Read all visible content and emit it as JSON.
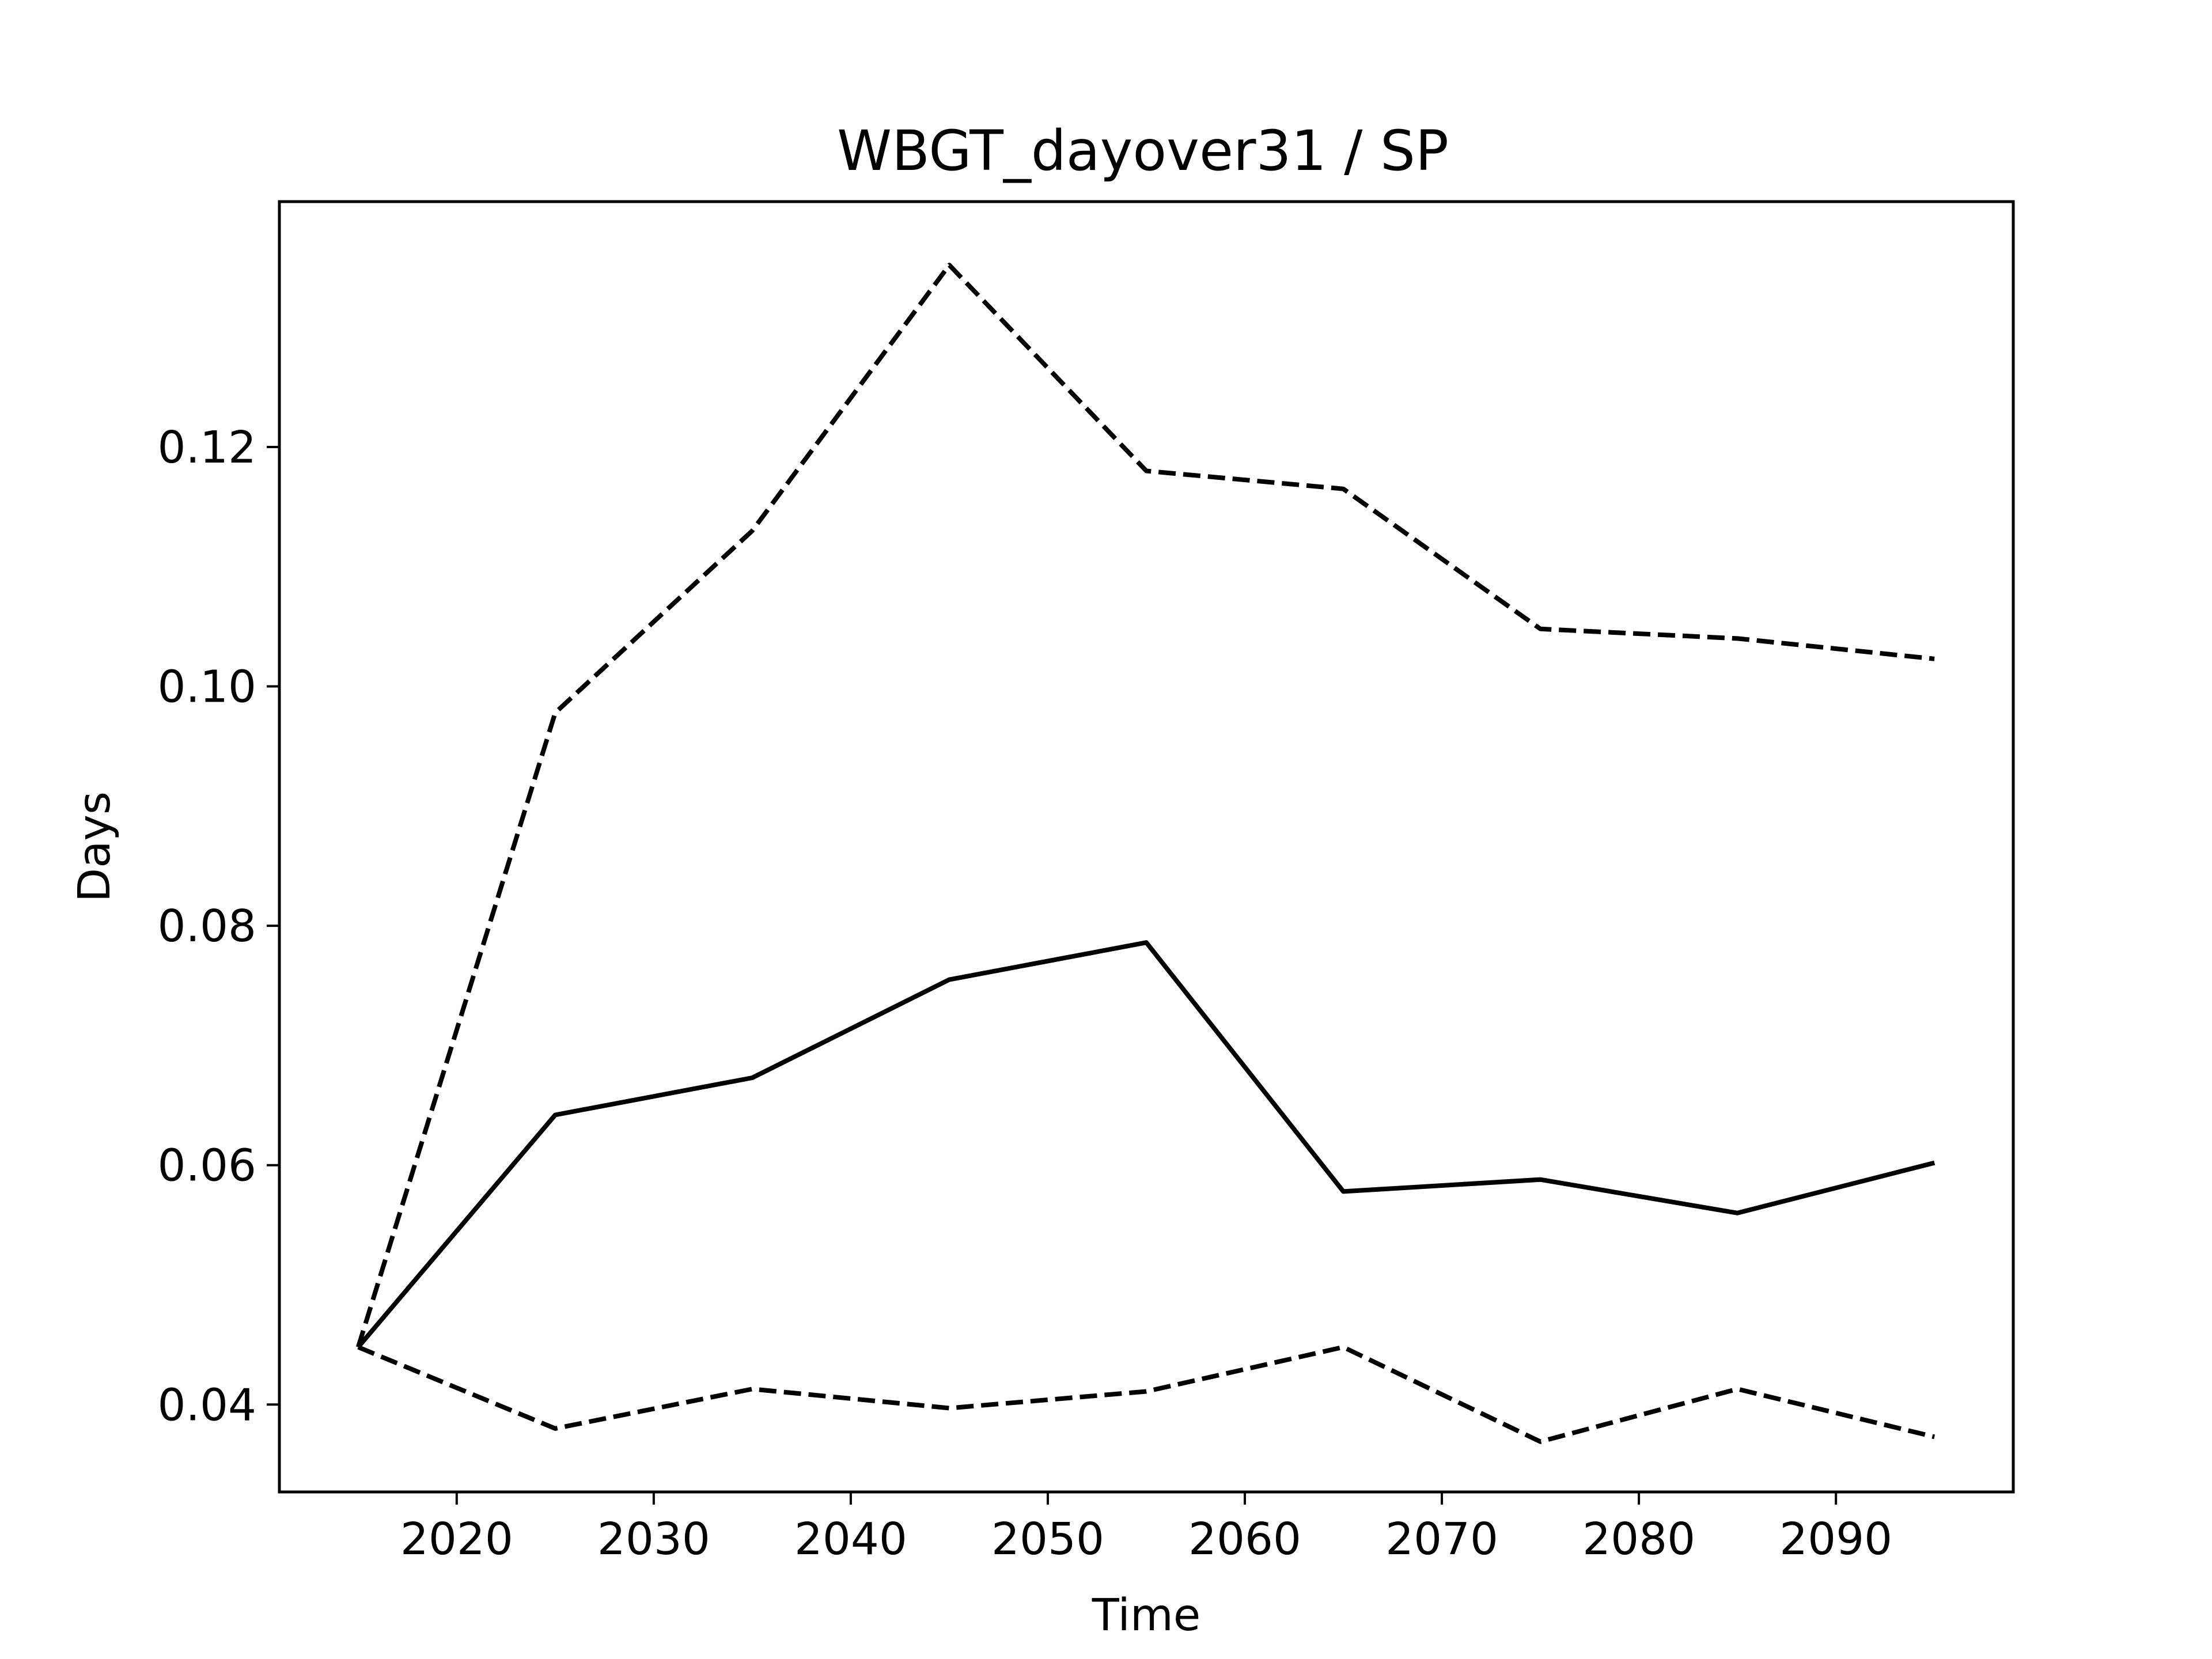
{
  "chart_data": {
    "type": "line",
    "title": "WBGT_dayover31 / SP",
    "xlabel": "Time",
    "ylabel": "Days",
    "xlim": [
      2011,
      2099
    ],
    "ylim": [
      0.0327,
      0.1405
    ],
    "xticks": [
      2020,
      2030,
      2040,
      2050,
      2060,
      2070,
      2080,
      2090
    ],
    "yticks": [
      0.04,
      0.06,
      0.08,
      0.1,
      0.12
    ],
    "ytick_labels": [
      "0.04",
      "0.06",
      "0.08",
      "0.10",
      "0.12"
    ],
    "grid": false,
    "x": [
      2015,
      2025,
      2035,
      2045,
      2055,
      2065,
      2075,
      2085,
      2095
    ],
    "series": [
      {
        "style": "dashed",
        "color": "#000000",
        "values": [
          0.0448,
          0.0978,
          0.113,
          0.1352,
          0.118,
          0.1165,
          0.1048,
          0.104,
          0.1023
        ]
      },
      {
        "style": "solid",
        "color": "#000000",
        "values": [
          0.0448,
          0.0642,
          0.0673,
          0.0755,
          0.0786,
          0.0578,
          0.0588,
          0.056,
          0.0602
        ]
      },
      {
        "style": "dashed",
        "color": "#000000",
        "values": [
          0.0448,
          0.038,
          0.0413,
          0.0397,
          0.0411,
          0.0448,
          0.0369,
          0.0413,
          0.0373
        ]
      }
    ]
  }
}
